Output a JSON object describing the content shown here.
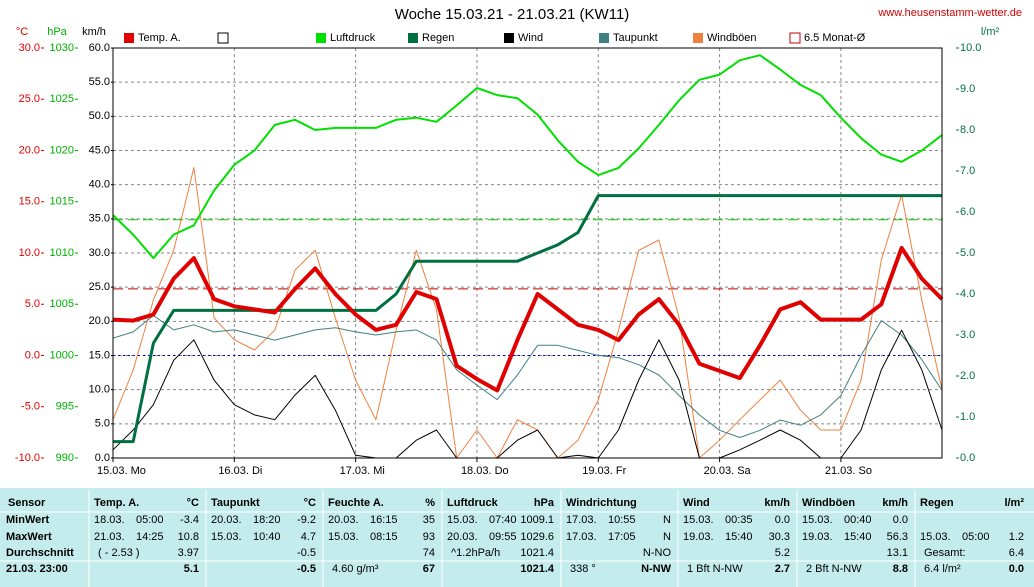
{
  "chart_data": {
    "type": "line",
    "title": "Woche 15.03.21 - 21.03.21 (KW11)",
    "source": "www.heusenstamm-wetter.de",
    "ylabel": "°C",
    "y3label": "hPa",
    "y4label": "km/h",
    "y2label": "l/m²",
    "x": [
      0,
      4,
      8,
      12,
      16,
      20,
      24,
      28,
      32,
      36,
      40,
      44,
      48,
      52,
      56,
      60,
      64,
      68,
      72,
      76,
      80,
      84,
      88,
      92,
      96,
      100,
      104,
      108,
      112,
      116,
      120,
      124,
      128,
      132,
      136,
      140,
      144,
      148,
      152,
      156,
      160,
      164
    ],
    "xlim": [
      0,
      164
    ],
    "xticks": [
      {
        "value": 0,
        "label": "15.03. Mo"
      },
      {
        "value": 24,
        "label": "16.03. Di"
      },
      {
        "value": 48,
        "label": "17.03. Mi"
      },
      {
        "value": 72,
        "label": "18.03. Do"
      },
      {
        "value": 96,
        "label": "19.03. Fr"
      },
      {
        "value": 120,
        "label": "20.03. Sa"
      },
      {
        "value": 144,
        "label": "21.03. So"
      }
    ],
    "ylim": [
      -10,
      30
    ],
    "yticks": [
      {
        "value": 30,
        "label": "30.0"
      },
      {
        "value": 25,
        "label": "25.0"
      },
      {
        "value": 20,
        "label": "20.0"
      },
      {
        "value": 15,
        "label": "15.0"
      },
      {
        "value": 10,
        "label": "10.0"
      },
      {
        "value": 5,
        "label": "5.0"
      },
      {
        "value": 0,
        "label": "0.0"
      },
      {
        "value": -5,
        "label": "-5.0"
      },
      {
        "value": -10,
        "label": "-10.0"
      }
    ],
    "y3lim": [
      990,
      1030
    ],
    "y3ticks": [
      1030,
      1025,
      1020,
      1015,
      1010,
      1005,
      1000,
      995,
      990
    ],
    "y4lim": [
      0,
      60
    ],
    "y4ticks": [
      {
        "value": 60,
        "label": "60.0"
      },
      {
        "value": 55,
        "label": "55.0"
      },
      {
        "value": 50,
        "label": "50.0"
      },
      {
        "value": 45,
        "label": "45.0"
      },
      {
        "value": 40,
        "label": "40.0"
      },
      {
        "value": 35,
        "label": "35.0"
      },
      {
        "value": 30,
        "label": "30.0"
      },
      {
        "value": 25,
        "label": "25.0"
      },
      {
        "value": 20,
        "label": "20.0"
      },
      {
        "value": 15,
        "label": "15.0"
      },
      {
        "value": 10,
        "label": "10.0"
      },
      {
        "value": 5,
        "label": "5.0"
      },
      {
        "value": 0,
        "label": "0.0"
      }
    ],
    "y2lim": [
      0,
      10
    ],
    "y2ticks": [
      {
        "value": 10,
        "label": "10.0"
      },
      {
        "value": 9,
        "label": "9.0"
      },
      {
        "value": 8,
        "label": "8.0"
      },
      {
        "value": 7,
        "label": "7.0"
      },
      {
        "value": 6,
        "label": "6.0"
      },
      {
        "value": 5,
        "label": "5.0"
      },
      {
        "value": 4,
        "label": "4.0"
      },
      {
        "value": 3,
        "label": "3.0"
      },
      {
        "value": 2,
        "label": "2.0"
      },
      {
        "value": 1,
        "label": "1.0"
      },
      {
        "value": 0,
        "label": "0.0"
      }
    ],
    "grid": true,
    "series": [
      {
        "name": "Temp. A.",
        "color": "#e00000",
        "axis": "y",
        "values": [
          3.5,
          3.4,
          4.0,
          7.5,
          9.5,
          5.5,
          4.8,
          4.5,
          4.2,
          6.5,
          8.5,
          6.0,
          4.0,
          2.5,
          3.0,
          6.2,
          5.5,
          -1.0,
          -2.3,
          -3.4,
          1.5,
          6.0,
          4.5,
          3.0,
          2.5,
          1.5,
          4.0,
          5.5,
          3.0,
          -0.8,
          -1.5,
          -2.2,
          1.0,
          4.5,
          5.2,
          3.5,
          3.5,
          3.5,
          5.0,
          10.5,
          7.5,
          5.5
        ]
      },
      {
        "name": "Luftdruck",
        "color": "#00e000",
        "axis": "y3",
        "values": [
          1013.7,
          1011.8,
          1009.5,
          1011.8,
          1012.7,
          1016.1,
          1018.6,
          1020.0,
          1022.5,
          1023.0,
          1022.0,
          1022.2,
          1022.2,
          1022.2,
          1023.0,
          1023.2,
          1022.8,
          1024.4,
          1026.1,
          1025.4,
          1025.1,
          1023.5,
          1021.0,
          1018.9,
          1017.6,
          1018.3,
          1020.2,
          1022.5,
          1024.9,
          1026.9,
          1027.4,
          1028.8,
          1029.3,
          1027.9,
          1026.4,
          1025.4,
          1023.2,
          1021.2,
          1019.6,
          1018.9,
          1020.0,
          1021.5
        ]
      },
      {
        "name": "Regen",
        "color": "#007040",
        "axis": "y2",
        "values": [
          0.4,
          0.4,
          2.8,
          3.6,
          3.6,
          3.6,
          3.6,
          3.6,
          3.6,
          3.6,
          3.6,
          3.6,
          3.6,
          3.6,
          4.0,
          4.8,
          4.8,
          4.8,
          4.8,
          4.8,
          4.8,
          5.0,
          5.2,
          5.5,
          6.4,
          6.4,
          6.4,
          6.4,
          6.4,
          6.4,
          6.4,
          6.4,
          6.4,
          6.4,
          6.4,
          6.4,
          6.4,
          6.4,
          6.4,
          6.4,
          6.4,
          6.4
        ]
      },
      {
        "name": "Wind",
        "color": "#000000",
        "axis": "y4",
        "values": [
          1.2,
          4.1,
          7.8,
          14.3,
          17.3,
          11.4,
          7.8,
          6.3,
          5.6,
          9.2,
          12.1,
          7.0,
          0.4,
          0,
          0,
          2.6,
          4.1,
          0,
          0,
          0,
          2.6,
          4.1,
          0,
          0.4,
          0,
          4.1,
          11.4,
          17.3,
          11.4,
          0,
          0,
          1.2,
          2.6,
          4.1,
          2.6,
          0,
          0,
          4.1,
          12.9,
          18.7,
          12.9,
          4.1
        ]
      },
      {
        "name": "Taupunkt",
        "color": "#408080",
        "axis": "y",
        "values": [
          1.7,
          2.3,
          3.9,
          2.5,
          3.0,
          2.3,
          2.5,
          2.0,
          1.5,
          2.0,
          2.5,
          2.7,
          2.3,
          2.0,
          2.3,
          2.5,
          1.5,
          -1.4,
          -2.9,
          -4.3,
          -1.9,
          1.0,
          1.0,
          0.5,
          0.0,
          -0.2,
          -0.9,
          -1.9,
          -3.9,
          -5.8,
          -7.3,
          -8.0,
          -7.3,
          -6.3,
          -6.8,
          -5.8,
          -3.9,
          0.0,
          3.4,
          2.0,
          -0.4,
          -3.4
        ]
      },
      {
        "name": "Windböen",
        "color": "#f08040",
        "axis": "y4",
        "values": [
          5.6,
          12.9,
          23.1,
          30.4,
          42.5,
          20.5,
          17.3,
          15.8,
          18.7,
          27.5,
          30.4,
          20.5,
          11.4,
          5.6,
          18.7,
          30.4,
          21.7,
          0,
          4.1,
          0,
          5.6,
          4.1,
          0,
          2.6,
          8.5,
          18.7,
          30.4,
          31.9,
          20.5,
          0,
          2.6,
          5.6,
          8.5,
          11.4,
          7.0,
          4.1,
          4.1,
          11.4,
          29.0,
          38.5,
          23.1,
          10.0
        ]
      }
    ],
    "hlines": [
      {
        "name": "6.5 Monat-Ø",
        "value": 6.5,
        "axis": "y",
        "color": "#c00000",
        "style": "dashed"
      },
      {
        "value": 1013.25,
        "axis": "y3",
        "color": "#00d000",
        "style": "dashed"
      },
      {
        "value": 0,
        "axis": "y",
        "color": "#0000d0",
        "style": "dotted"
      }
    ]
  },
  "table": {
    "columns": [
      {
        "name": "Sensor"
      },
      {
        "name": "Temp. A.",
        "unit": "°C"
      },
      {
        "name": "Taupunkt",
        "unit": "°C"
      },
      {
        "name": "Feuchte A.",
        "unit": "%"
      },
      {
        "name": "Luftdruck",
        "unit": "hPa"
      },
      {
        "name": "Windrichtung"
      },
      {
        "name": "Wind",
        "unit": "km/h"
      },
      {
        "name": "Windböen",
        "unit": "km/h"
      },
      {
        "name": "Regen",
        "unit": "l/m²"
      }
    ],
    "rows": [
      {
        "label": "MinWert",
        "cells": [
          {
            "date": "18.03.",
            "time": "05:00",
            "value": "-3.4"
          },
          {
            "date": "20.03.",
            "time": "18:20",
            "value": "-9.2"
          },
          {
            "date": "20.03.",
            "time": "16:15",
            "value": "35"
          },
          {
            "date": "15.03.",
            "time": "07:40",
            "value": "1009.1"
          },
          {
            "date": "17.03.",
            "time": "10:55",
            "value": "N"
          },
          {
            "date": "15.03.",
            "time": "00:35",
            "value": "0.0"
          },
          {
            "date": "15.03.",
            "time": "00:40",
            "value": "0.0"
          },
          {}
        ]
      },
      {
        "label": "MaxWert",
        "cells": [
          {
            "date": "21.03.",
            "time": "14:25",
            "value": "10.8"
          },
          {
            "date": "15.03.",
            "time": "10:40",
            "value": "4.7"
          },
          {
            "date": "15.03.",
            "time": "08:15",
            "value": "93"
          },
          {
            "date": "20.03.",
            "time": "09:55",
            "value": "1029.6"
          },
          {
            "date": "17.03.",
            "time": "17:05",
            "value": "N"
          },
          {
            "date": "19.03.",
            "time": "15:40",
            "value": "30.3"
          },
          {
            "date": "19.03.",
            "time": "15:40",
            "value": "56.3"
          },
          {
            "date": "15.03.",
            "time": "05:00",
            "value": "1.2"
          }
        ]
      },
      {
        "label": "Durchschnitt",
        "cells": [
          {
            "note": "( - 2.53 )",
            "value": "3.97"
          },
          {
            "value": "-0.5"
          },
          {
            "value": "74"
          },
          {
            "note": "^1.2hPa/h",
            "value": "1021.4"
          },
          {
            "value": "N-NO"
          },
          {
            "value": "5.2"
          },
          {
            "value": "13.1"
          },
          {
            "note": "Gesamt:",
            "value": "6.4"
          }
        ]
      },
      {
        "label": "21.03. 23:00",
        "cells": [
          {
            "value": "5.1"
          },
          {
            "value": "-0.5"
          },
          {
            "note": "4.60 g/m³",
            "value": "67"
          },
          {
            "value": "1021.4"
          },
          {
            "note": "338 °",
            "value": "N-NW"
          },
          {
            "note": "1 Bft N-NW",
            "value": "2.7"
          },
          {
            "note": "2 Bft N-NW",
            "value": "8.8"
          },
          {
            "note": "6.4 l/m²",
            "value": "0.0"
          }
        ]
      }
    ]
  }
}
